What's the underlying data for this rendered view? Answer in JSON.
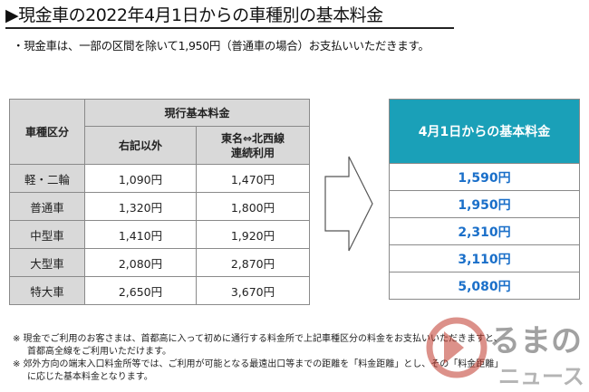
{
  "title": "▶現金車の2022年4月1日からの車種別の基本料金",
  "subtitle": "・現金車は、一部の区間を除いて1,950円（普通車の場合）お支払いいただきます。",
  "current_table": {
    "header_main": "現行基本料金",
    "col_vehicle": "車種区分",
    "col_other": "右記以外",
    "col_route_line1": "東名⇔北西線",
    "col_route_line2": "連続利用",
    "rows": [
      {
        "vehicle": "軽・二輪",
        "other": "1,090円",
        "route": "1,470円"
      },
      {
        "vehicle": "普通車",
        "other": "1,320円",
        "route": "1,800円"
      },
      {
        "vehicle": "中型車",
        "other": "1,410円",
        "route": "1,920円"
      },
      {
        "vehicle": "大型車",
        "other": "2,080円",
        "route": "2,870円"
      },
      {
        "vehicle": "特大車",
        "other": "2,650円",
        "route": "3,670円"
      }
    ]
  },
  "new_table": {
    "header": "4月1日からの基本料金",
    "values": [
      "1,590円",
      "1,950円",
      "2,310円",
      "3,110円",
      "5,080円"
    ]
  },
  "notes": [
    "※ 現金でご利用のお客さまは、首都高に入って初めに通行する料金所で上記車種区分の料金をお支払いいただきますと、",
    "首都高全線をご利用いただけます。",
    "※ 郊外方向の端末入口料金所等では、ご利用が可能となる最遠出口等までの距離を「料金距離」とし、その「料金距離」",
    "に応じた基本料金となります。"
  ],
  "watermark": "くるまのニュース",
  "colors": {
    "header_teal": "#1aa0b8",
    "value_blue": "#1a6fc9",
    "gray_cell": "#d9d9d9"
  }
}
